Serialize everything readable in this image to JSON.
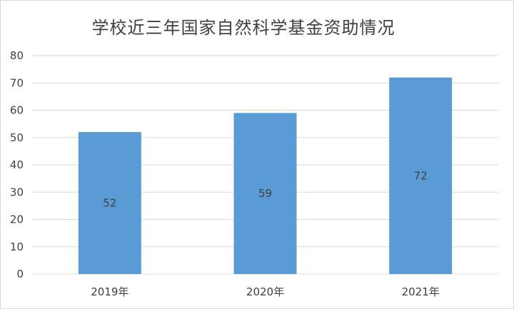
{
  "chart_data": {
    "type": "bar",
    "title": "学校近三年国家自然科学基金资助情况",
    "categories": [
      "2019年",
      "2020年",
      "2021年"
    ],
    "values": [
      52,
      59,
      72
    ],
    "data_labels": [
      "52",
      "59",
      "72"
    ],
    "ylim": [
      0,
      80
    ],
    "yticks": [
      "0",
      "10",
      "20",
      "30",
      "40",
      "50",
      "60",
      "70",
      "80"
    ],
    "grid": true,
    "legend": "none",
    "bar_color": "#5b9bd5"
  }
}
